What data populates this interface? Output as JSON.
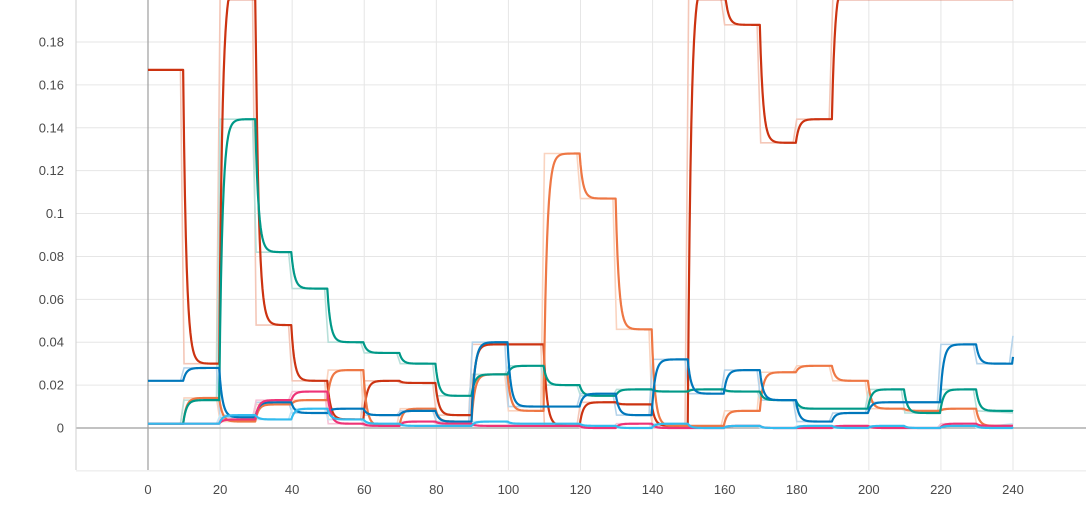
{
  "chart_data": {
    "type": "line",
    "x_ticks": [
      0,
      20,
      40,
      60,
      80,
      100,
      120,
      140,
      160,
      180,
      200,
      220,
      240
    ],
    "y_ticks": [
      "0",
      "0.02",
      "0.04",
      "0.06",
      "0.08",
      "0.1",
      "0.12",
      "0.14",
      "0.16",
      "0.18"
    ],
    "xlim": [
      -20,
      260
    ],
    "ylim": [
      -0.02,
      0.2
    ],
    "grid": true,
    "series": [
      {
        "color": "#cc3311",
        "raw_color": "#f4c7b8",
        "values": [
          [
            0,
            0.167
          ],
          [
            9,
            0.167
          ],
          [
            10,
            0.03
          ],
          [
            19,
            0.03
          ],
          [
            20,
            0.21
          ],
          [
            29,
            0.21
          ],
          [
            30,
            0.048
          ],
          [
            39,
            0.048
          ],
          [
            40,
            0.022
          ],
          [
            49,
            0.022
          ],
          [
            50,
            0.004
          ],
          [
            59,
            0.004
          ],
          [
            60,
            0.022
          ],
          [
            69,
            0.022
          ],
          [
            70,
            0.021
          ],
          [
            79,
            0.021
          ],
          [
            80,
            0.006
          ],
          [
            89,
            0.006
          ],
          [
            90,
            0.039
          ],
          [
            99,
            0.039
          ],
          [
            100,
            0.039
          ],
          [
            109,
            0.039
          ],
          [
            110,
            0.001
          ],
          [
            119,
            0.001
          ],
          [
            120,
            0.012
          ],
          [
            129,
            0.012
          ],
          [
            130,
            0.011
          ],
          [
            139,
            0.011
          ],
          [
            140,
            0.001
          ],
          [
            149,
            0.001
          ],
          [
            150,
            0.21
          ],
          [
            159,
            0.21
          ],
          [
            160,
            0.188
          ],
          [
            169,
            0.188
          ],
          [
            170,
            0.133
          ],
          [
            179,
            0.133
          ],
          [
            180,
            0.144
          ],
          [
            189,
            0.144
          ],
          [
            190,
            0.21
          ],
          [
            240,
            0.21
          ]
        ]
      },
      {
        "color": "#ee7744",
        "raw_color": "#fad4c0",
        "values": [
          [
            0,
            0.002
          ],
          [
            9,
            0.002
          ],
          [
            10,
            0.014
          ],
          [
            19,
            0.014
          ],
          [
            20,
            0.003
          ],
          [
            29,
            0.003
          ],
          [
            30,
            0.011
          ],
          [
            39,
            0.011
          ],
          [
            40,
            0.013
          ],
          [
            49,
            0.013
          ],
          [
            50,
            0.027
          ],
          [
            59,
            0.027
          ],
          [
            60,
            0.001
          ],
          [
            69,
            0.001
          ],
          [
            70,
            0.009
          ],
          [
            79,
            0.009
          ],
          [
            80,
            0.003
          ],
          [
            89,
            0.003
          ],
          [
            90,
            0.025
          ],
          [
            99,
            0.025
          ],
          [
            100,
            0.008
          ],
          [
            109,
            0.008
          ],
          [
            110,
            0.128
          ],
          [
            119,
            0.128
          ],
          [
            120,
            0.107
          ],
          [
            129,
            0.107
          ],
          [
            130,
            0.046
          ],
          [
            139,
            0.046
          ],
          [
            140,
            0.001
          ],
          [
            149,
            0.001
          ],
          [
            150,
            0.001
          ],
          [
            159,
            0.001
          ],
          [
            160,
            0.008
          ],
          [
            169,
            0.008
          ],
          [
            170,
            0.026
          ],
          [
            179,
            0.026
          ],
          [
            180,
            0.029
          ],
          [
            189,
            0.029
          ],
          [
            190,
            0.022
          ],
          [
            199,
            0.022
          ],
          [
            200,
            0.009
          ],
          [
            209,
            0.009
          ],
          [
            210,
            0.008
          ],
          [
            219,
            0.008
          ],
          [
            220,
            0.009
          ],
          [
            229,
            0.009
          ],
          [
            230,
            0.001
          ],
          [
            240,
            0.001
          ]
        ]
      },
      {
        "color": "#009988",
        "raw_color": "#b8e0da",
        "values": [
          [
            0,
            0.002
          ],
          [
            9,
            0.002
          ],
          [
            10,
            0.013
          ],
          [
            19,
            0.013
          ],
          [
            20,
            0.144
          ],
          [
            29,
            0.144
          ],
          [
            30,
            0.082
          ],
          [
            39,
            0.082
          ],
          [
            40,
            0.065
          ],
          [
            49,
            0.065
          ],
          [
            50,
            0.04
          ],
          [
            59,
            0.04
          ],
          [
            60,
            0.035
          ],
          [
            69,
            0.035
          ],
          [
            70,
            0.03
          ],
          [
            79,
            0.03
          ],
          [
            80,
            0.015
          ],
          [
            89,
            0.015
          ],
          [
            90,
            0.025
          ],
          [
            99,
            0.025
          ],
          [
            100,
            0.029
          ],
          [
            109,
            0.029
          ],
          [
            110,
            0.02
          ],
          [
            119,
            0.02
          ],
          [
            120,
            0.015
          ],
          [
            129,
            0.015
          ],
          [
            130,
            0.018
          ],
          [
            139,
            0.018
          ],
          [
            140,
            0.017
          ],
          [
            149,
            0.017
          ],
          [
            150,
            0.018
          ],
          [
            159,
            0.018
          ],
          [
            160,
            0.017
          ],
          [
            169,
            0.017
          ],
          [
            170,
            0.013
          ],
          [
            179,
            0.013
          ],
          [
            180,
            0.009
          ],
          [
            189,
            0.009
          ],
          [
            190,
            0.009
          ],
          [
            199,
            0.009
          ],
          [
            200,
            0.018
          ],
          [
            209,
            0.018
          ],
          [
            210,
            0.007
          ],
          [
            219,
            0.007
          ],
          [
            220,
            0.018
          ],
          [
            229,
            0.018
          ],
          [
            230,
            0.008
          ],
          [
            240,
            0.007
          ]
        ]
      },
      {
        "color": "#0077bb",
        "raw_color": "#b5d3ea",
        "values": [
          [
            0,
            0.022
          ],
          [
            9,
            0.022
          ],
          [
            10,
            0.028
          ],
          [
            19,
            0.028
          ],
          [
            20,
            0.005
          ],
          [
            29,
            0.005
          ],
          [
            30,
            0.012
          ],
          [
            39,
            0.012
          ],
          [
            40,
            0.007
          ],
          [
            49,
            0.007
          ],
          [
            50,
            0.009
          ],
          [
            59,
            0.009
          ],
          [
            60,
            0.006
          ],
          [
            69,
            0.006
          ],
          [
            70,
            0.008
          ],
          [
            79,
            0.008
          ],
          [
            80,
            0.003
          ],
          [
            89,
            0.003
          ],
          [
            90,
            0.04
          ],
          [
            99,
            0.04
          ],
          [
            100,
            0.01
          ],
          [
            109,
            0.01
          ],
          [
            110,
            0.01
          ],
          [
            119,
            0.01
          ],
          [
            120,
            0.016
          ],
          [
            129,
            0.016
          ],
          [
            130,
            0.006
          ],
          [
            139,
            0.006
          ],
          [
            140,
            0.032
          ],
          [
            149,
            0.032
          ],
          [
            150,
            0.016
          ],
          [
            159,
            0.016
          ],
          [
            160,
            0.027
          ],
          [
            169,
            0.027
          ],
          [
            170,
            0.013
          ],
          [
            179,
            0.013
          ],
          [
            180,
            0.003
          ],
          [
            189,
            0.003
          ],
          [
            190,
            0.007
          ],
          [
            199,
            0.007
          ],
          [
            200,
            0.012
          ],
          [
            209,
            0.012
          ],
          [
            210,
            0.012
          ],
          [
            219,
            0.012
          ],
          [
            220,
            0.039
          ],
          [
            229,
            0.039
          ],
          [
            230,
            0.03
          ],
          [
            239,
            0.03
          ],
          [
            240,
            0.043
          ]
        ]
      },
      {
        "color": "#ee3377",
        "raw_color": "#f6c2d6",
        "values": [
          [
            0,
            0.002
          ],
          [
            9,
            0.002
          ],
          [
            10,
            0.002
          ],
          [
            19,
            0.002
          ],
          [
            20,
            0.004
          ],
          [
            29,
            0.004
          ],
          [
            30,
            0.013
          ],
          [
            39,
            0.013
          ],
          [
            40,
            0.017
          ],
          [
            49,
            0.017
          ],
          [
            50,
            0.002
          ],
          [
            59,
            0.002
          ],
          [
            60,
            0.001
          ],
          [
            69,
            0.001
          ],
          [
            70,
            0.003
          ],
          [
            79,
            0.003
          ],
          [
            80,
            0.002
          ],
          [
            89,
            0.002
          ],
          [
            90,
            0.001
          ],
          [
            99,
            0.001
          ],
          [
            100,
            0.001
          ],
          [
            109,
            0.001
          ],
          [
            110,
            0.001
          ],
          [
            119,
            0.001
          ],
          [
            120,
            0.0
          ],
          [
            129,
            0.0
          ],
          [
            130,
            0.002
          ],
          [
            139,
            0.002
          ],
          [
            140,
            0.0
          ],
          [
            149,
            0.0
          ],
          [
            150,
            0.0
          ],
          [
            159,
            0.0
          ],
          [
            160,
            0.001
          ],
          [
            169,
            0.001
          ],
          [
            170,
            0.0
          ],
          [
            179,
            0.0
          ],
          [
            180,
            0.0
          ],
          [
            189,
            0.0
          ],
          [
            190,
            0.001
          ],
          [
            199,
            0.001
          ],
          [
            200,
            0.0
          ],
          [
            209,
            0.0
          ],
          [
            210,
            0.0
          ],
          [
            219,
            0.0
          ],
          [
            220,
            0.002
          ],
          [
            229,
            0.002
          ],
          [
            230,
            0.001
          ],
          [
            240,
            0.001
          ]
        ]
      },
      {
        "color": "#33bbee",
        "raw_color": "#c2e8f7",
        "values": [
          [
            0,
            0.002
          ],
          [
            9,
            0.002
          ],
          [
            10,
            0.002
          ],
          [
            19,
            0.002
          ],
          [
            20,
            0.006
          ],
          [
            29,
            0.006
          ],
          [
            30,
            0.004
          ],
          [
            39,
            0.004
          ],
          [
            40,
            0.009
          ],
          [
            49,
            0.009
          ],
          [
            50,
            0.004
          ],
          [
            59,
            0.004
          ],
          [
            60,
            0.002
          ],
          [
            69,
            0.002
          ],
          [
            70,
            0.001
          ],
          [
            79,
            0.001
          ],
          [
            80,
            0.001
          ],
          [
            89,
            0.001
          ],
          [
            90,
            0.003
          ],
          [
            99,
            0.003
          ],
          [
            100,
            0.002
          ],
          [
            109,
            0.002
          ],
          [
            110,
            0.002
          ],
          [
            119,
            0.002
          ],
          [
            120,
            0.001
          ],
          [
            129,
            0.001
          ],
          [
            130,
            0.0
          ],
          [
            139,
            0.0
          ],
          [
            140,
            0.002
          ],
          [
            149,
            0.002
          ],
          [
            150,
            0.0
          ],
          [
            159,
            0.0
          ],
          [
            160,
            0.001
          ],
          [
            169,
            0.001
          ],
          [
            170,
            0.0
          ],
          [
            179,
            0.0
          ],
          [
            180,
            0.001
          ],
          [
            189,
            0.001
          ],
          [
            190,
            0.0
          ],
          [
            199,
            0.0
          ],
          [
            200,
            0.001
          ],
          [
            209,
            0.001
          ],
          [
            210,
            0.0
          ],
          [
            219,
            0.0
          ],
          [
            220,
            0.001
          ],
          [
            229,
            0.001
          ],
          [
            230,
            0.0
          ],
          [
            240,
            0.002
          ]
        ]
      }
    ]
  }
}
